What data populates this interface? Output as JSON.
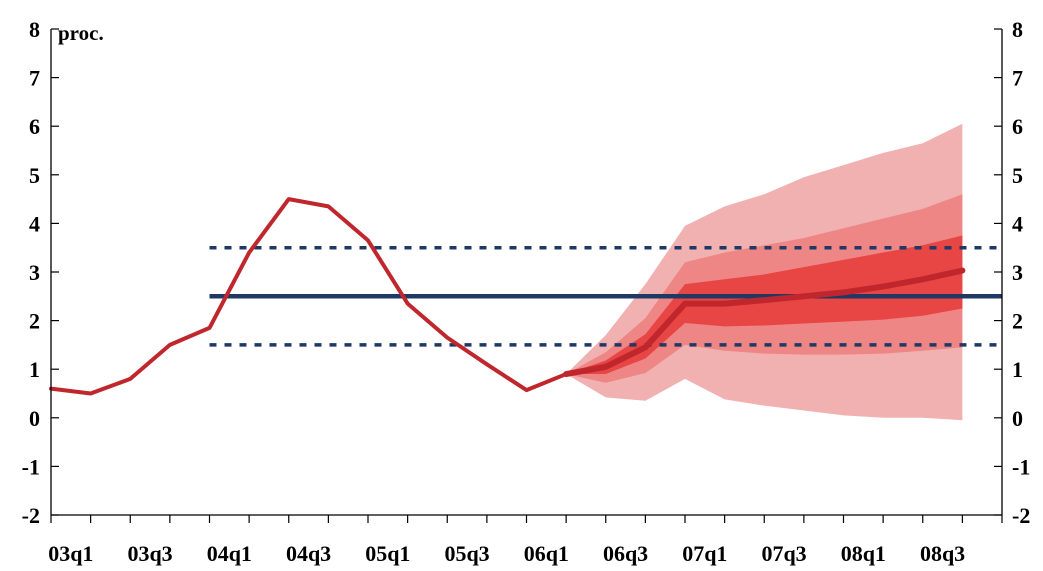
{
  "chart_data": {
    "type": "line",
    "unit_label": "proc.",
    "ylim": [
      -2,
      8
    ],
    "y_ticks": [
      -2,
      -1,
      0,
      1,
      2,
      3,
      4,
      5,
      6,
      7,
      8
    ],
    "x_tick_labels": [
      "03q1",
      "03q3",
      "04q1",
      "04q3",
      "05q1",
      "05q3",
      "06q1",
      "06q3",
      "07q1",
      "07q3",
      "08q1",
      "08q3"
    ],
    "x_periods": [
      "03q1",
      "03q2",
      "03q3",
      "03q4",
      "04q1",
      "04q2",
      "04q3",
      "04q4",
      "05q1",
      "05q2",
      "05q3",
      "05q4",
      "06q1",
      "06q2",
      "06q3",
      "06q4",
      "07q1",
      "07q2",
      "07q3",
      "07q4",
      "08q1",
      "08q2",
      "08q3",
      "08q4"
    ],
    "target": {
      "value": 2.5,
      "upper": 3.5,
      "lower": 1.5
    },
    "series": [
      {
        "values": [
          0.6,
          0.5,
          0.8,
          1.5,
          1.85,
          3.4,
          4.5,
          4.35,
          3.65,
          2.35,
          1.65,
          1.1,
          0.57,
          0.9,
          null,
          null,
          null,
          null,
          null,
          null,
          null,
          null,
          null,
          null
        ],
        "color": "#c0272d"
      },
      {
        "values": [
          null,
          null,
          null,
          null,
          null,
          null,
          null,
          null,
          null,
          null,
          null,
          null,
          null,
          0.9,
          1.05,
          1.45,
          2.35,
          2.35,
          2.42,
          2.5,
          2.58,
          2.7,
          2.85,
          3.03
        ],
        "color": "#c0272d"
      }
    ],
    "fan_bands": [
      {
        "lower": [
          null,
          null,
          null,
          null,
          null,
          null,
          null,
          null,
          null,
          null,
          null,
          null,
          null,
          0.9,
          0.42,
          0.35,
          0.8,
          0.38,
          0.25,
          0.15,
          0.05,
          0.0,
          0.0,
          -0.05
        ],
        "upper": [
          null,
          null,
          null,
          null,
          null,
          null,
          null,
          null,
          null,
          null,
          null,
          null,
          null,
          0.9,
          1.7,
          2.75,
          3.95,
          4.35,
          4.6,
          4.95,
          5.2,
          5.45,
          5.65,
          6.05
        ],
        "color": "#f2b1b1"
      },
      {
        "lower": [
          null,
          null,
          null,
          null,
          null,
          null,
          null,
          null,
          null,
          null,
          null,
          null,
          null,
          0.9,
          0.72,
          0.92,
          1.5,
          1.38,
          1.32,
          1.3,
          1.3,
          1.32,
          1.38,
          1.45
        ],
        "upper": [
          null,
          null,
          null,
          null,
          null,
          null,
          null,
          null,
          null,
          null,
          null,
          null,
          null,
          0.9,
          1.35,
          2.05,
          3.2,
          3.4,
          3.55,
          3.7,
          3.9,
          4.1,
          4.3,
          4.6
        ],
        "color": "#ee8686"
      },
      {
        "lower": [
          null,
          null,
          null,
          null,
          null,
          null,
          null,
          null,
          null,
          null,
          null,
          null,
          null,
          0.9,
          0.9,
          1.22,
          1.95,
          1.88,
          1.9,
          1.94,
          1.98,
          2.02,
          2.1,
          2.25
        ],
        "upper": [
          null,
          null,
          null,
          null,
          null,
          null,
          null,
          null,
          null,
          null,
          null,
          null,
          null,
          0.9,
          1.18,
          1.72,
          2.75,
          2.85,
          2.95,
          3.1,
          3.25,
          3.4,
          3.55,
          3.75
        ],
        "color": "#e84545"
      }
    ],
    "grid": false,
    "colors": {
      "history_line": "#c0272d",
      "target_line": "#1f3864",
      "tolerance_band": "#1f3864",
      "axis": "#000000"
    }
  }
}
